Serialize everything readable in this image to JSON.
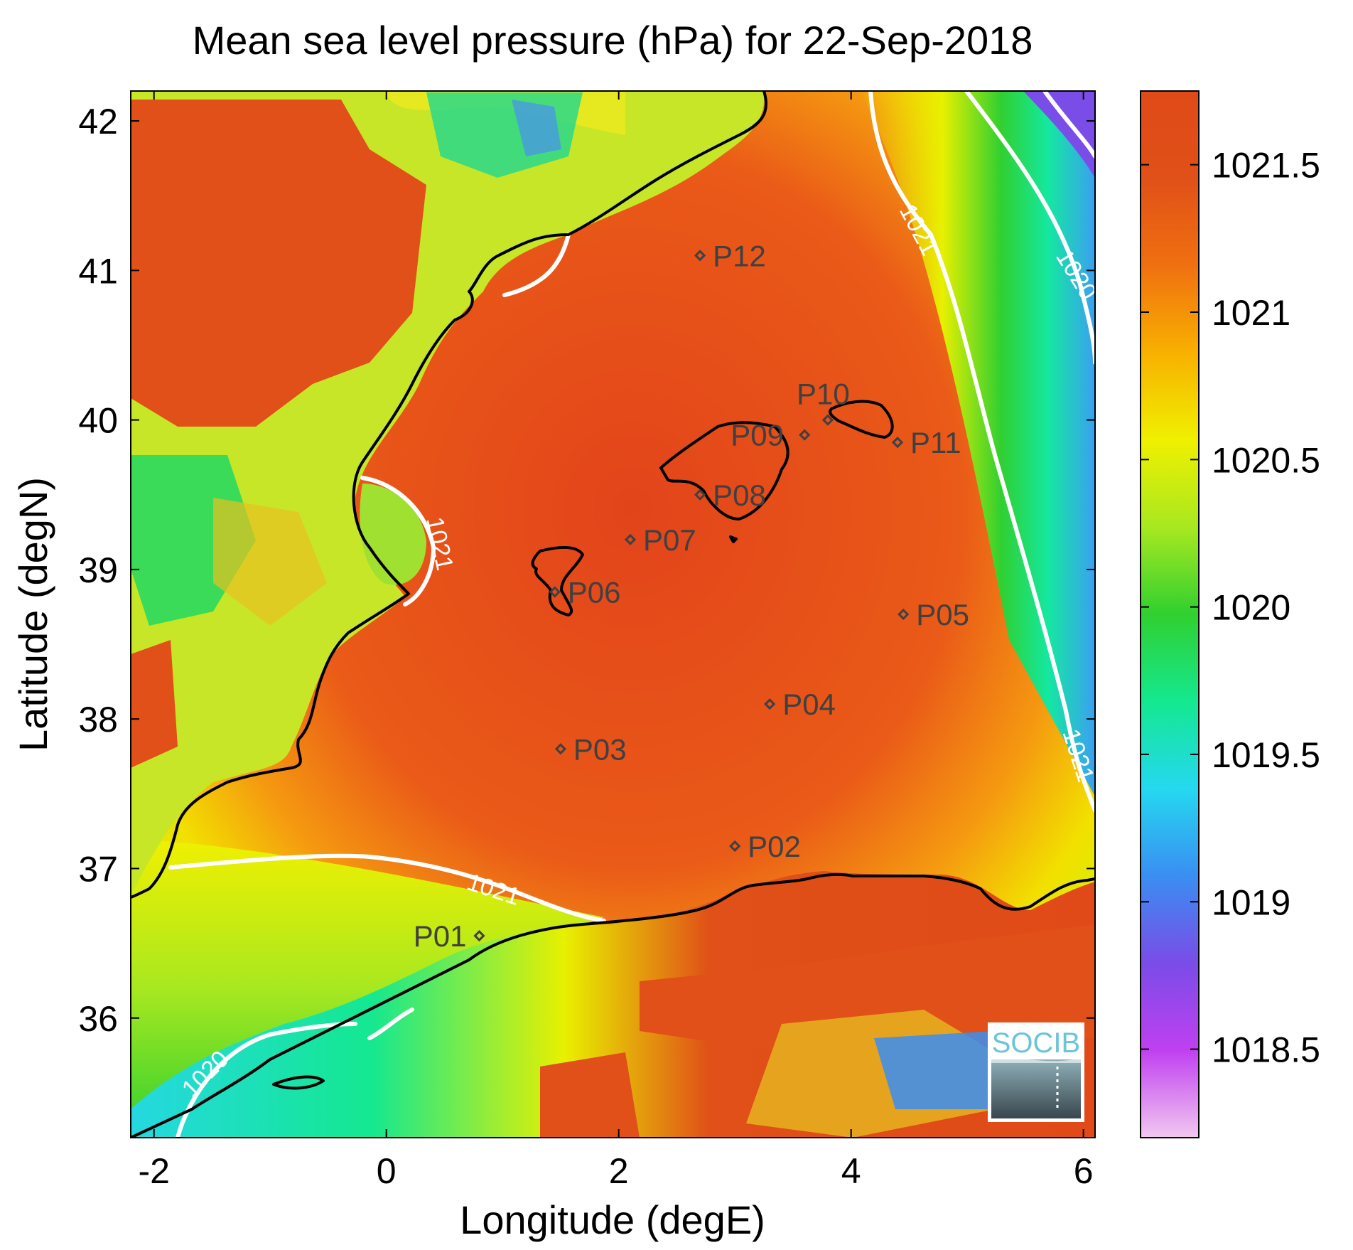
{
  "title": "Mean sea level pressure (hPa) for 22-Sep-2018",
  "x_axis": {
    "label": "Longitude (degE)",
    "ticks": [
      "-2",
      "0",
      "2",
      "4",
      "6"
    ],
    "range": [
      -2.2,
      6.1
    ]
  },
  "y_axis": {
    "label": "Latitude (degN)",
    "ticks": [
      "36",
      "37",
      "38",
      "39",
      "40",
      "41",
      "42"
    ],
    "range": [
      35.2,
      42.2
    ]
  },
  "colorbar": {
    "ticks": [
      "1018.5",
      "1019",
      "1019.5",
      "1020",
      "1020.5",
      "1021",
      "1021.5"
    ],
    "range": [
      1018.2,
      1021.75
    ],
    "colormap": [
      "#f2c8f0",
      "#c040f0",
      "#7a4ce8",
      "#3a8ef2",
      "#25d8f0",
      "#14e890",
      "#30d030",
      "#a8e820",
      "#f0f000",
      "#f8b000",
      "#f07010",
      "#e05018",
      "#e04a18"
    ]
  },
  "contours": [
    {
      "label": "1021",
      "color": "#ffffff"
    },
    {
      "label": "1020",
      "color": "#ffffff"
    }
  ],
  "stations": [
    {
      "id": "P01",
      "lon": 0.8,
      "lat": 36.55
    },
    {
      "id": "P02",
      "lon": 3.0,
      "lat": 37.15
    },
    {
      "id": "P03",
      "lon": 1.5,
      "lat": 37.8
    },
    {
      "id": "P04",
      "lon": 3.3,
      "lat": 38.1
    },
    {
      "id": "P05",
      "lon": 4.45,
      "lat": 38.7
    },
    {
      "id": "P06",
      "lon": 1.45,
      "lat": 38.85
    },
    {
      "id": "P07",
      "lon": 2.1,
      "lat": 39.2
    },
    {
      "id": "P08",
      "lon": 2.7,
      "lat": 39.5
    },
    {
      "id": "P09",
      "lon": 3.6,
      "lat": 39.9
    },
    {
      "id": "P10",
      "lon": 3.8,
      "lat": 40.0
    },
    {
      "id": "P11",
      "lon": 4.4,
      "lat": 39.85
    },
    {
      "id": "P12",
      "lon": 2.7,
      "lat": 41.1
    }
  ],
  "logo": {
    "text": "SOCIB"
  },
  "colors": {
    "land_high": "#e05018",
    "sea_high": "#e84a1a",
    "contour": "#ffffff",
    "coast": "#000000",
    "station": "#404040"
  }
}
